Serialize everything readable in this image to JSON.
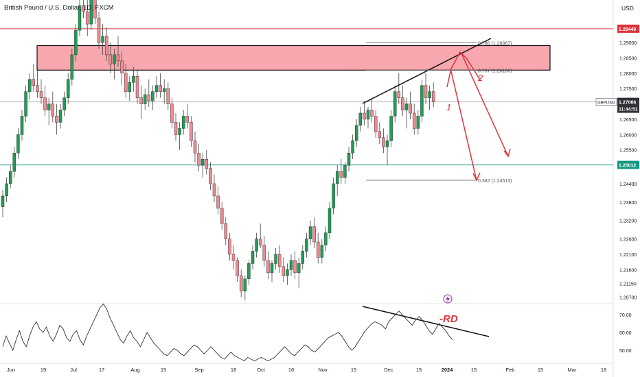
{
  "header": {
    "title": "British Pound / U.S. Dollar, 1D, FXCM",
    "currency": "USD"
  },
  "chart_data": {
    "type": "candlestick",
    "symbol": "GBPUSD",
    "price_axis": {
      "ylim": [
        1.205,
        1.308
      ],
      "ticks": [
        "1.29000",
        "1.28500",
        "1.28000",
        "1.27500",
        "1.26500",
        "1.26000",
        "1.25500",
        "1.24400",
        "1.23800",
        "1.23200",
        "1.22600",
        "1.22100",
        "1.21600",
        "1.21150",
        "1.20700"
      ]
    },
    "time_axis": {
      "ticks": [
        "Jun",
        "19",
        "Jul",
        "17",
        "Aug",
        "15",
        "Sep",
        "18",
        "Oct",
        "16",
        "Nov",
        "15",
        "Dec",
        "15",
        "2024",
        "15",
        "Feb",
        "15",
        "Mar",
        "18"
      ]
    },
    "price_badges": [
      {
        "label": "1.29449",
        "value": 1.29449,
        "color": "#e0323c"
      },
      {
        "label": "GBPUSD",
        "value": 1.27066,
        "color": "#555555"
      },
      {
        "label": "1.27066",
        "value": 1.27066,
        "color": "#2f3136"
      },
      {
        "label": "11:44:51",
        "value": 1.26935,
        "color": "#2f3136"
      },
      {
        "label": "1.25012",
        "value": 1.25012,
        "color": "#149980"
      }
    ],
    "horizontal_levels": [
      {
        "value": 1.29449,
        "color": "#e0323c"
      },
      {
        "value": 1.25012,
        "color": "#149980"
      },
      {
        "value": 1.27066,
        "color": "#b7b7b7"
      }
    ],
    "supply_zone": {
      "top": 1.289,
      "bottom": 1.281,
      "color": "#f7a2a9"
    },
    "fib_levels": [
      {
        "label": "0.786 (1.28987)",
        "value": 1.28987
      },
      {
        "label": "0.707 (1.28100)",
        "value": 1.281
      },
      {
        "label": "0.382 (1.24513)",
        "value": 1.24513
      }
    ],
    "wave_labels": [
      "1",
      "2"
    ],
    "oscillator": {
      "ticks": [
        "70.00",
        "60.00",
        "50.00"
      ],
      "ylim": [
        44,
        76
      ],
      "annotation": "-RD",
      "values": [
        52,
        58,
        54,
        50,
        56,
        61,
        55,
        52,
        58,
        63,
        66,
        62,
        60,
        63,
        58,
        55,
        59,
        64,
        62,
        57,
        55,
        59,
        61,
        56,
        53,
        58,
        62,
        66,
        70,
        74,
        76,
        73,
        68,
        64,
        60,
        56,
        54,
        58,
        61,
        57,
        55,
        52,
        56,
        60,
        57,
        54,
        52,
        50,
        48,
        47,
        49,
        51,
        50,
        48,
        47,
        49,
        51,
        53,
        52,
        50,
        48,
        50,
        52,
        50,
        48,
        46,
        45,
        47,
        49,
        47,
        46,
        45,
        44,
        46,
        45,
        44,
        45,
        46,
        45,
        44,
        45,
        46,
        48,
        50,
        52,
        50,
        48,
        47,
        49,
        51,
        53,
        52,
        50,
        49,
        51,
        53,
        55,
        57,
        58,
        59,
        60,
        58,
        55,
        52,
        50,
        52,
        55,
        58,
        61,
        63,
        65,
        66,
        65,
        64,
        62,
        66,
        68,
        70,
        72,
        70,
        68,
        66,
        64,
        67,
        69,
        67,
        64,
        61,
        59,
        62,
        65,
        63,
        61,
        58,
        56
      ]
    },
    "candles": [
      {
        "o": 1.2365,
        "h": 1.242,
        "l": 1.233,
        "c": 1.24
      },
      {
        "o": 1.24,
        "h": 1.246,
        "l": 1.238,
        "c": 1.244
      },
      {
        "o": 1.244,
        "h": 1.25,
        "l": 1.2425,
        "c": 1.248
      },
      {
        "o": 1.248,
        "h": 1.256,
        "l": 1.246,
        "c": 1.254
      },
      {
        "o": 1.254,
        "h": 1.262,
        "l": 1.252,
        "c": 1.26
      },
      {
        "o": 1.26,
        "h": 1.268,
        "l": 1.258,
        "c": 1.266
      },
      {
        "o": 1.266,
        "h": 1.276,
        "l": 1.264,
        "c": 1.274
      },
      {
        "o": 1.274,
        "h": 1.28,
        "l": 1.2715,
        "c": 1.278
      },
      {
        "o": 1.278,
        "h": 1.283,
        "l": 1.274,
        "c": 1.276
      },
      {
        "o": 1.276,
        "h": 1.281,
        "l": 1.272,
        "c": 1.274
      },
      {
        "o": 1.274,
        "h": 1.278,
        "l": 1.27,
        "c": 1.272
      },
      {
        "o": 1.272,
        "h": 1.276,
        "l": 1.266,
        "c": 1.268
      },
      {
        "o": 1.268,
        "h": 1.272,
        "l": 1.263,
        "c": 1.27
      },
      {
        "o": 1.27,
        "h": 1.274,
        "l": 1.264,
        "c": 1.266
      },
      {
        "o": 1.266,
        "h": 1.27,
        "l": 1.26,
        "c": 1.264
      },
      {
        "o": 1.264,
        "h": 1.27,
        "l": 1.262,
        "c": 1.268
      },
      {
        "o": 1.268,
        "h": 1.274,
        "l": 1.266,
        "c": 1.272
      },
      {
        "o": 1.272,
        "h": 1.28,
        "l": 1.27,
        "c": 1.278
      },
      {
        "o": 1.278,
        "h": 1.288,
        "l": 1.276,
        "c": 1.286
      },
      {
        "o": 1.286,
        "h": 1.296,
        "l": 1.284,
        "c": 1.294
      },
      {
        "o": 1.294,
        "h": 1.305,
        "l": 1.292,
        "c": 1.302
      },
      {
        "o": 1.302,
        "h": 1.309,
        "l": 1.298,
        "c": 1.3
      },
      {
        "o": 1.3,
        "h": 1.304,
        "l": 1.292,
        "c": 1.296
      },
      {
        "o": 1.296,
        "h": 1.308,
        "l": 1.294,
        "c": 1.306
      },
      {
        "o": 1.306,
        "h": 1.308,
        "l": 1.296,
        "c": 1.298
      },
      {
        "o": 1.298,
        "h": 1.3,
        "l": 1.288,
        "c": 1.29
      },
      {
        "o": 1.29,
        "h": 1.296,
        "l": 1.286,
        "c": 1.292
      },
      {
        "o": 1.292,
        "h": 1.295,
        "l": 1.284,
        "c": 1.286
      },
      {
        "o": 1.286,
        "h": 1.29,
        "l": 1.28,
        "c": 1.283
      },
      {
        "o": 1.283,
        "h": 1.288,
        "l": 1.278,
        "c": 1.286
      },
      {
        "o": 1.286,
        "h": 1.292,
        "l": 1.282,
        "c": 1.284
      },
      {
        "o": 1.284,
        "h": 1.287,
        "l": 1.276,
        "c": 1.28
      },
      {
        "o": 1.28,
        "h": 1.283,
        "l": 1.272,
        "c": 1.274
      },
      {
        "o": 1.274,
        "h": 1.279,
        "l": 1.271,
        "c": 1.277
      },
      {
        "o": 1.277,
        "h": 1.282,
        "l": 1.274,
        "c": 1.279
      },
      {
        "o": 1.279,
        "h": 1.281,
        "l": 1.27,
        "c": 1.272
      },
      {
        "o": 1.272,
        "h": 1.276,
        "l": 1.265,
        "c": 1.27
      },
      {
        "o": 1.27,
        "h": 1.275,
        "l": 1.268,
        "c": 1.273
      },
      {
        "o": 1.273,
        "h": 1.278,
        "l": 1.269,
        "c": 1.271
      },
      {
        "o": 1.271,
        "h": 1.276,
        "l": 1.268,
        "c": 1.274
      },
      {
        "o": 1.274,
        "h": 1.279,
        "l": 1.272,
        "c": 1.276
      },
      {
        "o": 1.276,
        "h": 1.28,
        "l": 1.272,
        "c": 1.274
      },
      {
        "o": 1.274,
        "h": 1.278,
        "l": 1.27,
        "c": 1.275
      },
      {
        "o": 1.275,
        "h": 1.277,
        "l": 1.268,
        "c": 1.27
      },
      {
        "o": 1.27,
        "h": 1.272,
        "l": 1.262,
        "c": 1.264
      },
      {
        "o": 1.264,
        "h": 1.267,
        "l": 1.258,
        "c": 1.26
      },
      {
        "o": 1.26,
        "h": 1.264,
        "l": 1.255,
        "c": 1.262
      },
      {
        "o": 1.262,
        "h": 1.268,
        "l": 1.26,
        "c": 1.266
      },
      {
        "o": 1.266,
        "h": 1.27,
        "l": 1.262,
        "c": 1.264
      },
      {
        "o": 1.264,
        "h": 1.266,
        "l": 1.256,
        "c": 1.258
      },
      {
        "o": 1.258,
        "h": 1.261,
        "l": 1.251,
        "c": 1.254
      },
      {
        "o": 1.254,
        "h": 1.257,
        "l": 1.248,
        "c": 1.25
      },
      {
        "o": 1.25,
        "h": 1.254,
        "l": 1.246,
        "c": 1.252
      },
      {
        "o": 1.252,
        "h": 1.255,
        "l": 1.247,
        "c": 1.249
      },
      {
        "o": 1.249,
        "h": 1.251,
        "l": 1.242,
        "c": 1.244
      },
      {
        "o": 1.244,
        "h": 1.247,
        "l": 1.238,
        "c": 1.24
      },
      {
        "o": 1.24,
        "h": 1.243,
        "l": 1.234,
        "c": 1.236
      },
      {
        "o": 1.236,
        "h": 1.238,
        "l": 1.229,
        "c": 1.231
      },
      {
        "o": 1.231,
        "h": 1.233,
        "l": 1.224,
        "c": 1.226
      },
      {
        "o": 1.226,
        "h": 1.228,
        "l": 1.219,
        "c": 1.221
      },
      {
        "o": 1.221,
        "h": 1.224,
        "l": 1.216,
        "c": 1.219
      },
      {
        "o": 1.219,
        "h": 1.22,
        "l": 1.212,
        "c": 1.214
      },
      {
        "o": 1.214,
        "h": 1.216,
        "l": 1.207,
        "c": 1.209
      },
      {
        "o": 1.209,
        "h": 1.214,
        "l": 1.206,
        "c": 1.213
      },
      {
        "o": 1.213,
        "h": 1.219,
        "l": 1.211,
        "c": 1.218
      },
      {
        "o": 1.218,
        "h": 1.224,
        "l": 1.216,
        "c": 1.222
      },
      {
        "o": 1.222,
        "h": 1.228,
        "l": 1.22,
        "c": 1.226
      },
      {
        "o": 1.226,
        "h": 1.231,
        "l": 1.223,
        "c": 1.224
      },
      {
        "o": 1.224,
        "h": 1.227,
        "l": 1.217,
        "c": 1.219
      },
      {
        "o": 1.219,
        "h": 1.222,
        "l": 1.213,
        "c": 1.215
      },
      {
        "o": 1.215,
        "h": 1.219,
        "l": 1.212,
        "c": 1.218
      },
      {
        "o": 1.218,
        "h": 1.223,
        "l": 1.216,
        "c": 1.221
      },
      {
        "o": 1.221,
        "h": 1.224,
        "l": 1.215,
        "c": 1.217
      },
      {
        "o": 1.217,
        "h": 1.22,
        "l": 1.212,
        "c": 1.214
      },
      {
        "o": 1.214,
        "h": 1.218,
        "l": 1.211,
        "c": 1.216
      },
      {
        "o": 1.216,
        "h": 1.221,
        "l": 1.214,
        "c": 1.219
      },
      {
        "o": 1.219,
        "h": 1.222,
        "l": 1.213,
        "c": 1.215
      },
      {
        "o": 1.215,
        "h": 1.22,
        "l": 1.21,
        "c": 1.218
      },
      {
        "o": 1.218,
        "h": 1.224,
        "l": 1.216,
        "c": 1.222
      },
      {
        "o": 1.222,
        "h": 1.228,
        "l": 1.22,
        "c": 1.226
      },
      {
        "o": 1.226,
        "h": 1.232,
        "l": 1.224,
        "c": 1.23
      },
      {
        "o": 1.23,
        "h": 1.233,
        "l": 1.223,
        "c": 1.225
      },
      {
        "o": 1.225,
        "h": 1.228,
        "l": 1.218,
        "c": 1.22
      },
      {
        "o": 1.22,
        "h": 1.226,
        "l": 1.218,
        "c": 1.224
      },
      {
        "o": 1.224,
        "h": 1.23,
        "l": 1.222,
        "c": 1.228
      },
      {
        "o": 1.228,
        "h": 1.238,
        "l": 1.226,
        "c": 1.236
      },
      {
        "o": 1.236,
        "h": 1.246,
        "l": 1.234,
        "c": 1.244
      },
      {
        "o": 1.244,
        "h": 1.25,
        "l": 1.24,
        "c": 1.248
      },
      {
        "o": 1.248,
        "h": 1.252,
        "l": 1.244,
        "c": 1.246
      },
      {
        "o": 1.246,
        "h": 1.251,
        "l": 1.244,
        "c": 1.25
      },
      {
        "o": 1.25,
        "h": 1.256,
        "l": 1.248,
        "c": 1.254
      },
      {
        "o": 1.254,
        "h": 1.26,
        "l": 1.252,
        "c": 1.258
      },
      {
        "o": 1.258,
        "h": 1.265,
        "l": 1.256,
        "c": 1.263
      },
      {
        "o": 1.263,
        "h": 1.269,
        "l": 1.261,
        "c": 1.267
      },
      {
        "o": 1.267,
        "h": 1.271,
        "l": 1.263,
        "c": 1.265
      },
      {
        "o": 1.265,
        "h": 1.269,
        "l": 1.262,
        "c": 1.268
      },
      {
        "o": 1.268,
        "h": 1.272,
        "l": 1.264,
        "c": 1.266
      },
      {
        "o": 1.266,
        "h": 1.268,
        "l": 1.259,
        "c": 1.261
      },
      {
        "o": 1.261,
        "h": 1.264,
        "l": 1.257,
        "c": 1.259
      },
      {
        "o": 1.259,
        "h": 1.262,
        "l": 1.254,
        "c": 1.256
      },
      {
        "o": 1.256,
        "h": 1.26,
        "l": 1.25,
        "c": 1.258
      },
      {
        "o": 1.258,
        "h": 1.268,
        "l": 1.256,
        "c": 1.266
      },
      {
        "o": 1.266,
        "h": 1.276,
        "l": 1.264,
        "c": 1.274
      },
      {
        "o": 1.274,
        "h": 1.28,
        "l": 1.27,
        "c": 1.272
      },
      {
        "o": 1.272,
        "h": 1.276,
        "l": 1.266,
        "c": 1.268
      },
      {
        "o": 1.268,
        "h": 1.272,
        "l": 1.262,
        "c": 1.27
      },
      {
        "o": 1.27,
        "h": 1.274,
        "l": 1.265,
        "c": 1.267
      },
      {
        "o": 1.267,
        "h": 1.27,
        "l": 1.26,
        "c": 1.262
      },
      {
        "o": 1.262,
        "h": 1.268,
        "l": 1.26,
        "c": 1.266
      },
      {
        "o": 1.266,
        "h": 1.278,
        "l": 1.264,
        "c": 1.276
      },
      {
        "o": 1.276,
        "h": 1.28,
        "l": 1.27,
        "c": 1.272
      },
      {
        "o": 1.272,
        "h": 1.276,
        "l": 1.268,
        "c": 1.274
      },
      {
        "o": 1.274,
        "h": 1.277,
        "l": 1.269,
        "c": 1.2707
      }
    ]
  }
}
